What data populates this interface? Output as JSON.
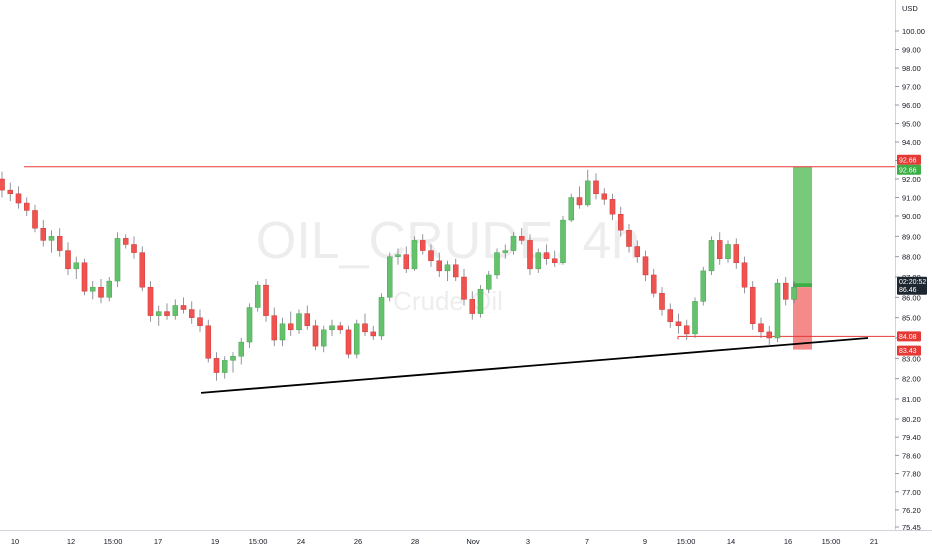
{
  "chart_data": {
    "type": "candlestick",
    "currency": "USD",
    "watermark": {
      "symbol": "OIL_CRUDE, 4h",
      "name": "Crude Oil"
    },
    "y_ticks": [
      "100.00",
      "99.00",
      "98.00",
      "97.00",
      "96.00",
      "95.00",
      "94.00",
      "93.00",
      "92.00",
      "91.00",
      "90.00",
      "89.00",
      "88.00",
      "87.00",
      "86.00",
      "85.00",
      "84.00",
      "83.00",
      "82.00",
      "81.00",
      "80.20",
      "79.40",
      "78.60",
      "77.80",
      "77.00",
      "76.20",
      "75.45"
    ],
    "x_ticks": [
      "10",
      "12",
      "15:00",
      "17",
      "19",
      "15:00",
      "24",
      "26",
      "28",
      "Nov",
      "3",
      "7",
      "9",
      "15:00",
      "14",
      "16",
      "15:00",
      "21"
    ],
    "price_labels": {
      "resistance": "92.66",
      "target": "92.66",
      "current": "86.46",
      "countdown": "02:20:52",
      "support": "84.08",
      "stop": "83.43"
    },
    "colors": {
      "up": "#26a69a",
      "down": "#ef5350",
      "up_fill": "#63c26b",
      "resistance_line": "#e53935",
      "trendline": "#000000",
      "target_zone": "#79c97a",
      "stop_zone": "#f58a8a",
      "current_badge": "#1e2630"
    },
    "levels": {
      "resistance": 92.66,
      "support": 84.08,
      "target": 92.66,
      "stop": 83.43,
      "entry": 86.7
    },
    "trendline": {
      "from": {
        "x": "18",
        "y": 81.3
      },
      "to": {
        "x": "21",
        "y": 84.0
      }
    },
    "series_ohlc": [
      [
        92.0,
        92.4,
        91.0,
        91.4
      ],
      [
        91.4,
        91.8,
        90.8,
        91.2
      ],
      [
        91.2,
        91.6,
        90.4,
        90.7
      ],
      [
        90.7,
        91.0,
        90.0,
        90.3
      ],
      [
        90.3,
        90.6,
        89.2,
        89.4
      ],
      [
        89.4,
        89.8,
        88.5,
        88.8
      ],
      [
        88.8,
        89.3,
        88.2,
        89.0
      ],
      [
        89.0,
        89.4,
        88.0,
        88.3
      ],
      [
        88.3,
        88.7,
        87.1,
        87.4
      ],
      [
        87.4,
        88.0,
        86.9,
        87.7
      ],
      [
        87.7,
        87.9,
        86.1,
        86.3
      ],
      [
        86.3,
        86.8,
        85.9,
        86.5
      ],
      [
        86.5,
        86.9,
        85.7,
        86.0
      ],
      [
        86.0,
        87.0,
        85.8,
        86.8
      ],
      [
        86.8,
        89.2,
        86.5,
        88.9
      ],
      [
        88.9,
        89.1,
        88.4,
        88.6
      ],
      [
        88.6,
        89.0,
        87.9,
        88.2
      ],
      [
        88.2,
        88.5,
        86.3,
        86.5
      ],
      [
        86.5,
        86.8,
        84.8,
        85.1
      ],
      [
        85.1,
        85.6,
        84.6,
        85.3
      ],
      [
        85.3,
        85.7,
        84.9,
        85.1
      ],
      [
        85.1,
        85.9,
        84.9,
        85.6
      ],
      [
        85.6,
        86.0,
        85.2,
        85.4
      ],
      [
        85.4,
        85.8,
        84.7,
        85.0
      ],
      [
        85.0,
        85.4,
        84.3,
        84.6
      ],
      [
        84.6,
        84.9,
        82.8,
        83.0
      ],
      [
        83.0,
        83.3,
        81.9,
        82.3
      ],
      [
        82.3,
        83.1,
        82.0,
        82.9
      ],
      [
        82.9,
        83.3,
        82.3,
        83.1
      ],
      [
        83.1,
        84.0,
        82.7,
        83.8
      ],
      [
        83.8,
        85.7,
        83.5,
        85.5
      ],
      [
        85.5,
        86.8,
        85.3,
        86.6
      ],
      [
        86.6,
        86.9,
        84.8,
        85.1
      ],
      [
        85.1,
        85.5,
        83.6,
        83.9
      ],
      [
        83.9,
        85.0,
        83.6,
        84.7
      ],
      [
        84.7,
        85.3,
        84.1,
        84.4
      ],
      [
        84.4,
        85.4,
        84.2,
        85.2
      ],
      [
        85.2,
        85.6,
        84.4,
        84.6
      ],
      [
        84.6,
        84.9,
        83.4,
        83.6
      ],
      [
        83.6,
        84.6,
        83.3,
        84.4
      ],
      [
        84.4,
        84.9,
        84.1,
        84.6
      ],
      [
        84.6,
        84.8,
        84.2,
        84.4
      ],
      [
        84.4,
        84.6,
        83.0,
        83.2
      ],
      [
        83.2,
        84.9,
        83.0,
        84.7
      ],
      [
        84.7,
        85.2,
        84.1,
        84.3
      ],
      [
        84.3,
        84.6,
        83.9,
        84.1
      ],
      [
        84.1,
        86.2,
        83.9,
        86.0
      ],
      [
        86.0,
        88.2,
        85.8,
        88.0
      ],
      [
        88.0,
        88.4,
        87.6,
        88.1
      ],
      [
        88.1,
        88.5,
        87.2,
        87.4
      ],
      [
        87.4,
        89.0,
        87.3,
        88.8
      ],
      [
        88.8,
        89.1,
        88.1,
        88.3
      ],
      [
        88.3,
        88.6,
        87.5,
        87.8
      ],
      [
        87.8,
        88.2,
        87.0,
        87.3
      ],
      [
        87.3,
        87.8,
        86.8,
        87.6
      ],
      [
        87.6,
        87.9,
        86.8,
        87.0
      ],
      [
        87.0,
        87.4,
        85.6,
        85.9
      ],
      [
        85.9,
        86.3,
        84.9,
        85.2
      ],
      [
        85.2,
        86.6,
        85.0,
        86.4
      ],
      [
        86.4,
        87.3,
        86.2,
        87.1
      ],
      [
        87.1,
        88.4,
        86.9,
        88.2
      ],
      [
        88.2,
        88.6,
        87.9,
        88.3
      ],
      [
        88.3,
        89.2,
        88.1,
        89.0
      ],
      [
        89.0,
        89.4,
        88.6,
        88.8
      ],
      [
        88.8,
        89.1,
        87.1,
        87.4
      ],
      [
        87.4,
        88.4,
        87.2,
        88.2
      ],
      [
        88.2,
        88.6,
        87.6,
        87.9
      ],
      [
        87.9,
        88.3,
        87.5,
        87.7
      ],
      [
        87.7,
        90.0,
        87.6,
        89.8
      ],
      [
        89.8,
        91.2,
        89.7,
        91.0
      ],
      [
        91.0,
        91.6,
        90.4,
        90.6
      ],
      [
        90.6,
        92.5,
        90.5,
        91.9
      ],
      [
        91.9,
        92.3,
        90.9,
        91.2
      ],
      [
        91.2,
        91.5,
        90.6,
        90.9
      ],
      [
        90.9,
        91.2,
        89.8,
        90.1
      ],
      [
        90.1,
        90.5,
        89.0,
        89.3
      ],
      [
        89.3,
        89.6,
        88.2,
        88.5
      ],
      [
        88.5,
        88.8,
        87.7,
        88.0
      ],
      [
        88.0,
        88.3,
        86.8,
        87.1
      ],
      [
        87.1,
        87.4,
        86.0,
        86.2
      ],
      [
        86.2,
        86.5,
        85.1,
        85.4
      ],
      [
        85.4,
        85.7,
        84.5,
        84.8
      ],
      [
        84.8,
        85.2,
        84.2,
        84.6
      ],
      [
        84.6,
        84.9,
        83.9,
        84.2
      ],
      [
        84.2,
        86.0,
        84.0,
        85.8
      ],
      [
        85.8,
        87.5,
        85.6,
        87.3
      ],
      [
        87.3,
        89.0,
        87.1,
        88.8
      ],
      [
        88.8,
        89.2,
        87.6,
        87.9
      ],
      [
        87.9,
        88.8,
        87.7,
        88.6
      ],
      [
        88.6,
        88.9,
        87.4,
        87.7
      ],
      [
        87.7,
        88.0,
        86.2,
        86.5
      ],
      [
        86.5,
        86.8,
        84.4,
        84.7
      ],
      [
        84.7,
        85.0,
        84.0,
        84.3
      ],
      [
        84.3,
        84.6,
        83.6,
        84.0
      ],
      [
        84.0,
        86.9,
        83.8,
        86.7
      ],
      [
        86.7,
        87.0,
        85.6,
        85.9
      ],
      [
        85.9,
        86.8,
        85.7,
        86.5
      ]
    ]
  }
}
